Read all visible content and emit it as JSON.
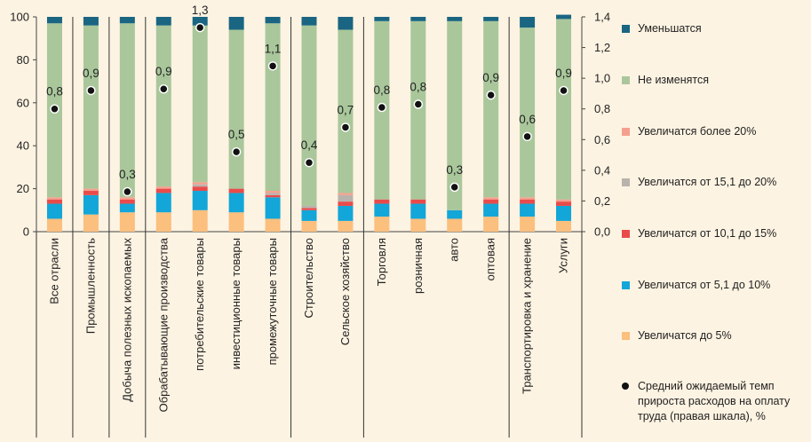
{
  "chart_data": {
    "type": "bar",
    "stacked": true,
    "categories": [
      "Все отрасли",
      "Промышленность",
      "Добыча полезных ископаемых",
      "Обрабатывающие производства",
      "потребительские товары",
      "инвестиционные товары",
      "промежуточные товары",
      "Строительство",
      "Сельское хозяйство",
      "Торговля",
      "розничная",
      "авто",
      "оптовая",
      "Транспортировка и хранение",
      "Услуги"
    ],
    "groups": [
      [
        0
      ],
      [
        1
      ],
      [
        2
      ],
      [
        3,
        4,
        5,
        6
      ],
      [
        7,
        8
      ],
      [
        9,
        10,
        11,
        12
      ],
      [
        13,
        14
      ]
    ],
    "series": [
      {
        "name": "Увеличатся до 5%",
        "color": "#fbbf7e",
        "values": [
          6,
          8,
          9,
          9,
          10,
          9,
          6,
          5,
          5,
          7,
          6,
          6,
          7,
          7,
          5
        ]
      },
      {
        "name": "Увеличатся от 5,1 до 10%",
        "color": "#13a6d8",
        "values": [
          7,
          9,
          4,
          9,
          9,
          9,
          10,
          5,
          7,
          6,
          7,
          4,
          6,
          6,
          7
        ]
      },
      {
        "name": "Увеличатся от 10,1 до 15%",
        "color": "#e94b4b",
        "values": [
          2,
          2,
          2,
          2,
          2,
          2,
          1,
          1,
          2,
          2,
          2,
          0,
          2,
          2,
          2
        ]
      },
      {
        "name": "Увеличатся от 15,1 до 20%",
        "color": "#b9b3ad",
        "values": [
          0,
          0,
          0,
          0,
          1,
          0,
          1,
          1,
          3,
          0,
          0,
          0,
          0,
          0,
          0
        ]
      },
      {
        "name": "Увеличатся более 20%",
        "color": "#f5a08e",
        "values": [
          1,
          1,
          1,
          1,
          1,
          0,
          1,
          0,
          1,
          0,
          0,
          0,
          1,
          1,
          1
        ]
      },
      {
        "name": "Не изменятся",
        "color": "#a9c79b",
        "values": [
          81,
          76,
          81,
          75,
          73,
          74,
          78,
          84,
          76,
          83,
          83,
          88,
          82,
          79,
          84
        ]
      },
      {
        "name": "Уменьшатся",
        "color": "#1a6582",
        "values": [
          3,
          4,
          3,
          4,
          4,
          6,
          3,
          4,
          6,
          2,
          2,
          2,
          2,
          5,
          2
        ]
      }
    ],
    "line": {
      "name": "Средний ожидаемый темп прироста расходов на оплату труда (правая шкала), %",
      "values": [
        0.8,
        0.92,
        0.26,
        0.93,
        1.33,
        0.52,
        1.08,
        0.45,
        0.68,
        0.81,
        0.83,
        0.29,
        0.89,
        0.62,
        0.92
      ],
      "labels": [
        "0,8",
        "0,9",
        "0,3",
        "0,9",
        "1,3",
        "0,5",
        "1,1",
        "0,4",
        "0,7",
        "0,8",
        "0,8",
        "0,3",
        "0,9",
        "0,6",
        "0,9"
      ]
    },
    "left_axis": {
      "min": 0,
      "max": 100,
      "ticks": [
        "0",
        "20",
        "40",
        "60",
        "80",
        "100"
      ]
    },
    "right_axis": {
      "min": 0,
      "max": 1.4,
      "ticks": [
        "0,0",
        "0,2",
        "0,4",
        "0,6",
        "0,8",
        "1,0",
        "1,2",
        "1,4"
      ]
    }
  },
  "legend": {
    "items": [
      {
        "label": "Уменьшатся",
        "color": "#1a6582"
      },
      {
        "label": "Не изменятся",
        "color": "#a9c79b"
      },
      {
        "label": "Увеличатся более 20%",
        "color": "#f5a08e"
      },
      {
        "label": "Увеличатся от 15,1 до 20%",
        "color": "#b9b3ad"
      },
      {
        "label": "Увеличатся от 10,1 до 15%",
        "color": "#e94b4b"
      },
      {
        "label": "Увеличатся от 5,1 до 10%",
        "color": "#13a6d8"
      },
      {
        "label": "Увеличатся до 5%",
        "color": "#fbbf7e"
      }
    ],
    "line_label": "Средний ожидаемый темп прироста расходов на оплату труда (правая шкала), %"
  }
}
